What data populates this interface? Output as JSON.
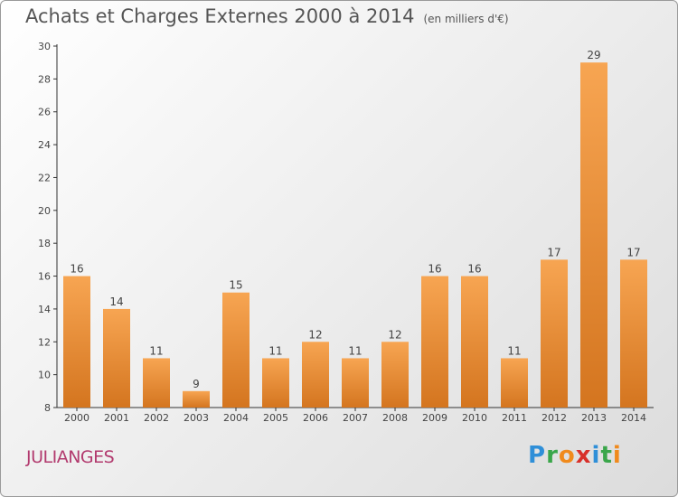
{
  "title": "Achats et Charges Externes 2000 à 2014",
  "unit": "(en milliers d'€)",
  "commune": "JULIANGES",
  "brand": {
    "letters": [
      "P",
      "r",
      "o",
      "x",
      "i",
      "t",
      "i"
    ],
    "colors": [
      "#2f8fd8",
      "#3aa64a",
      "#f08a1c",
      "#d8302a",
      "#2f8fd8",
      "#3aa64a",
      "#f08a1c"
    ]
  },
  "colors": {
    "bar_top": "#f7a552",
    "bar_bottom": "#d4751f",
    "title": "#555555",
    "commune": "#b23a6e"
  },
  "chart_data": {
    "type": "bar",
    "categories": [
      "2000",
      "2001",
      "2002",
      "2003",
      "2004",
      "2005",
      "2006",
      "2007",
      "2008",
      "2009",
      "2010",
      "2011",
      "2012",
      "2013",
      "2014"
    ],
    "values": [
      16,
      14,
      11,
      9,
      15,
      11,
      12,
      11,
      12,
      16,
      16,
      11,
      17,
      29,
      17
    ],
    "ylim": [
      8,
      30
    ],
    "yticks": [
      8,
      10,
      12,
      14,
      16,
      18,
      20,
      22,
      24,
      26,
      28,
      30
    ],
    "grid": false,
    "xlabel": "",
    "ylabel": ""
  }
}
